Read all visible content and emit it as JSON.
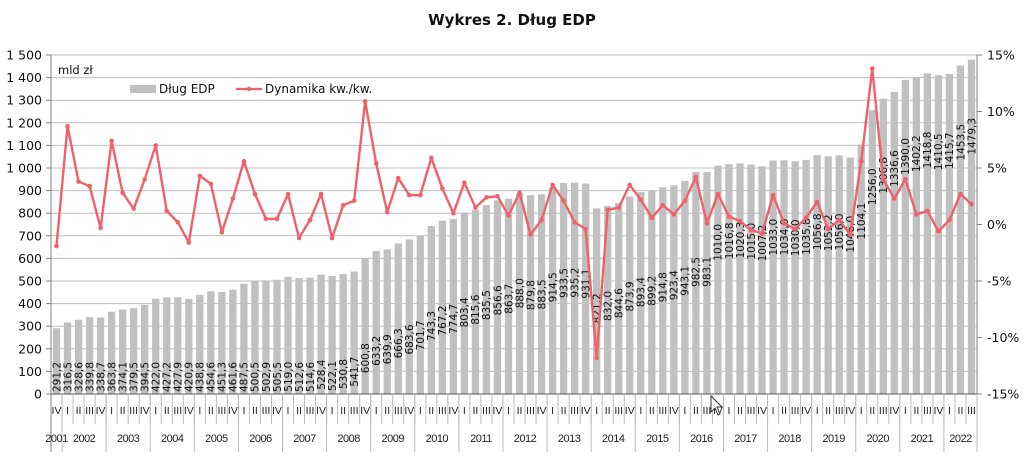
{
  "chart_data": {
    "type": "bar+line",
    "title": "Wykres 2. Dług EDP",
    "unit_label": "mld zł",
    "ylim_left": [
      0,
      1500
    ],
    "yticks_left": [
      "0",
      "100",
      "200",
      "300",
      "400",
      "500",
      "600",
      "700",
      "800",
      "900",
      "1 000",
      "1 100",
      "1 200",
      "1 300",
      "1 400",
      "1 500"
    ],
    "ylim_right": [
      -15,
      15
    ],
    "yticks_right": [
      "-15%",
      "-10%",
      "-5%",
      "0%",
      "5%",
      "10%",
      "15%"
    ],
    "grid": true,
    "legend_position": "top-left",
    "legend": [
      "Dług EDP",
      "Dynamika kw./kw."
    ],
    "colors": {
      "bars": "#c0c0c0",
      "line": "#f0616a",
      "grid": "#bdbdbd",
      "axis": "#808080"
    },
    "years": [
      "2001",
      "2002",
      "2003",
      "2004",
      "2005",
      "2006",
      "2007",
      "2008",
      "2009",
      "2010",
      "2011",
      "2012",
      "2013",
      "2014",
      "2015",
      "2016",
      "2017",
      "2018",
      "2019",
      "2020",
      "2021",
      "2022"
    ],
    "quarters": [
      "IV",
      "I",
      "II",
      "III",
      "IV",
      "I",
      "II",
      "III",
      "IV",
      "I",
      "II",
      "III",
      "IV",
      "I",
      "II",
      "III",
      "IV",
      "I",
      "II",
      "III",
      "IV",
      "I",
      "II",
      "III",
      "IV",
      "I",
      "II",
      "III",
      "IV",
      "I",
      "II",
      "III",
      "IV",
      "I",
      "II",
      "III",
      "IV",
      "I",
      "II",
      "III",
      "IV",
      "I",
      "II",
      "III",
      "IV",
      "I",
      "II",
      "III",
      "IV",
      "I",
      "II",
      "III",
      "IV",
      "I",
      "II",
      "III",
      "IV",
      "I",
      "II",
      "III",
      "IV",
      "I",
      "II",
      "III",
      "IV",
      "I",
      "II",
      "III",
      "IV",
      "I",
      "II",
      "III",
      "IV",
      "I",
      "II",
      "III",
      "IV",
      "I",
      "II",
      "III",
      "IV",
      "I",
      "II",
      "III"
    ],
    "series": [
      {
        "name": "Dług EDP",
        "type": "bar",
        "axis": "left",
        "values": [
          291.2,
          316.5,
          328.6,
          339.8,
          338.7,
          363.8,
          374.1,
          379.5,
          394.5,
          422.0,
          427.2,
          427.9,
          420.9,
          438.8,
          454.6,
          451.3,
          461.6,
          487.5,
          500.5,
          502.9,
          505.5,
          519.0,
          512.6,
          514.6,
          528.4,
          522.1,
          530.8,
          541.7,
          600.8,
          633.2,
          639.9,
          666.3,
          683.6,
          701.7,
          743.3,
          767.2,
          774.7,
          803.4,
          815.6,
          835.5,
          856.6,
          863.7,
          888.0,
          879.8,
          883.5,
          914.5,
          933.5,
          935.2,
          931.1,
          821.2,
          832.0,
          844.6,
          873.9,
          893.4,
          899.2,
          914.8,
          923.4,
          943.1,
          982.5,
          983.1,
          1010.0,
          1016.8,
          1020.3,
          1015.0,
          1007.2,
          1033.0,
          1034.0,
          1030.0,
          1035.8,
          1056.8,
          1052.2,
          1056.0,
          1046.0,
          1104.1,
          1256.0,
          1306.8,
          1336.6,
          1390.0,
          1402.2,
          1418.8,
          1410.5,
          1415.7,
          1453.5,
          1479.3
        ],
        "labels": [
          "291,2",
          "316,5",
          "328,6",
          "339,8",
          "338,7",
          "363,8",
          "374,1",
          "379,5",
          "394,5",
          "422,0",
          "427,2",
          "427,9",
          "420,9",
          "438,8",
          "454,6",
          "451,3",
          "461,6",
          "487,5",
          "500,5",
          "502,9",
          "505,5",
          "519,0",
          "512,6",
          "514,6",
          "528,4",
          "522,1",
          "530,8",
          "541,7",
          "600,8",
          "633,2",
          "639,9",
          "666,3",
          "683,6",
          "701,7",
          "743,3",
          "767,2",
          "774,7",
          "803,4",
          "815,6",
          "835,5",
          "856,6",
          "863,7",
          "888,0",
          "879,8",
          "883,5",
          "914,5",
          "933,5",
          "935,2",
          "931,1",
          "821,2",
          "832,0",
          "844,6",
          "873,9",
          "893,4",
          "899,2",
          "914,8",
          "923,4",
          "943,1",
          "982,5",
          "983,1",
          "1010,0",
          "1016,8",
          "1020,3",
          "1015,0",
          "1007,2",
          "1033,0",
          "1034,0",
          "1030,0",
          "1035,8",
          "1056,8",
          "1052,2",
          "1056,0",
          "1046,0",
          "1104,1",
          "1256,0",
          "1306,8",
          "1336,6",
          "1390,0",
          "1402,2",
          "1418,8",
          "1410,5",
          "1415,7",
          "1453,5",
          "1479,3"
        ]
      },
      {
        "name": "Dynamika kw./kw.",
        "type": "line",
        "axis": "right",
        "unit": "%",
        "values": [
          -1.9,
          8.7,
          3.8,
          3.4,
          -0.3,
          7.4,
          2.8,
          1.4,
          4.0,
          7.0,
          1.2,
          0.2,
          -1.6,
          4.3,
          3.6,
          -0.7,
          2.3,
          5.6,
          2.7,
          0.5,
          0.5,
          2.7,
          -1.2,
          0.4,
          2.7,
          -1.2,
          1.7,
          2.1,
          10.9,
          5.4,
          1.1,
          4.1,
          2.6,
          2.6,
          5.9,
          3.2,
          1.0,
          3.7,
          1.5,
          2.4,
          2.5,
          0.8,
          2.8,
          -0.9,
          0.4,
          3.5,
          2.1,
          0.2,
          -0.4,
          -11.8,
          1.3,
          1.5,
          3.5,
          2.2,
          0.6,
          1.7,
          0.9,
          2.1,
          4.2,
          0.1,
          2.7,
          0.7,
          0.3,
          -0.5,
          -0.8,
          2.6,
          0.1,
          -0.4,
          0.6,
          2.0,
          -0.4,
          0.4,
          -0.9,
          5.6,
          13.8,
          4.0,
          2.3,
          4.0,
          0.9,
          1.2,
          -0.6,
          0.4,
          2.7,
          1.8
        ]
      }
    ]
  }
}
